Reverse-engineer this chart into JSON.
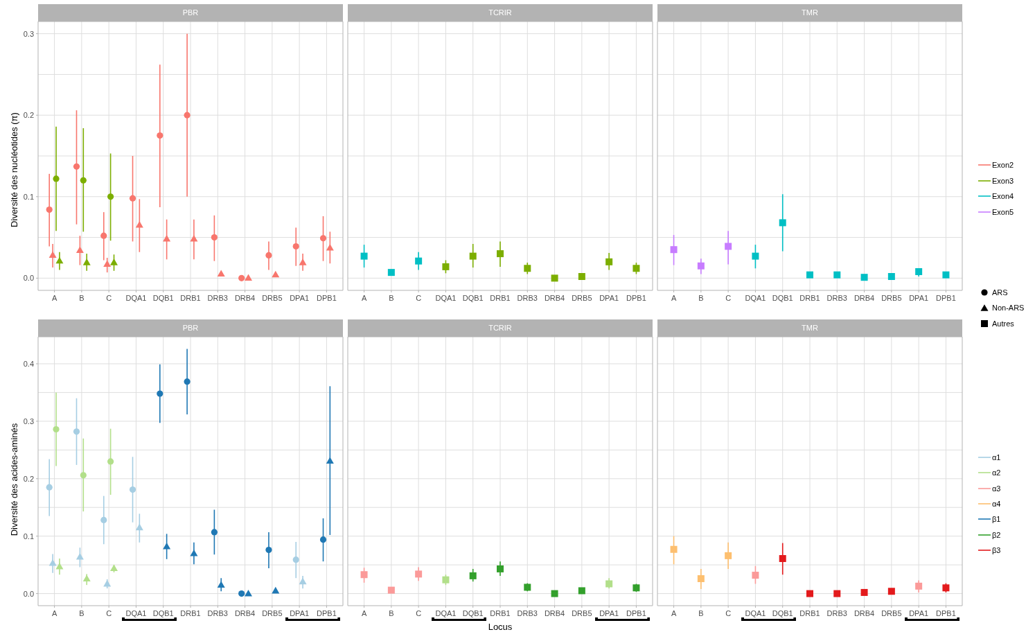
{
  "chart_data": [
    {
      "type": "scatter",
      "title": "PBR",
      "ylabel": "Diversité des nucléotides (π)",
      "categories": [
        "A",
        "B",
        "C",
        "DQA1",
        "DQB1",
        "DRB1",
        "DRB3",
        "DRB4",
        "DRB5",
        "DPA1",
        "DPB1"
      ],
      "ylim": [
        -0.015,
        0.315
      ],
      "yticks": [
        {
          "value": 0,
          "label": "0.0"
        },
        {
          "value": 0.05,
          "label": null
        },
        0.1,
        {
          "value": 0.15,
          "label": null
        },
        0.2,
        {
          "value": 0.25,
          "label": null
        },
        0.3
      ],
      "grid": true,
      "series": [
        {
          "color": "#f8766d",
          "marker": "circle",
          "values": [
            0.084,
            0.137,
            0.052,
            0.098,
            0.175,
            0.2,
            0.05,
            0,
            0.028,
            0.039,
            0.049
          ],
          "errors": [
            [
              0.039,
              0.128
            ],
            [
              0.066,
              0.206
            ],
            [
              0.022,
              0.081
            ],
            [
              0.045,
              0.15
            ],
            [
              0.087,
              0.262
            ],
            [
              0.1,
              0.3
            ],
            [
              0.021,
              0.077
            ],
            null,
            [
              0.01,
              0.045
            ],
            [
              0.015,
              0.062
            ],
            [
              0.021,
              0.076
            ]
          ]
        },
        {
          "color": "#f8766d",
          "marker": "triangle",
          "values": [
            0.029,
            0.035,
            0.018,
            0.066,
            0.049,
            0.049,
            0.006,
            0.001,
            0.005,
            0.02,
            0.038
          ],
          "errors": [
            [
              0.013,
              0.042
            ],
            [
              0.016,
              0.052
            ],
            [
              0.007,
              0.025
            ],
            [
              0.032,
              0.097
            ],
            [
              0.023,
              0.072
            ],
            [
              0.023,
              0.072
            ],
            null,
            null,
            null,
            [
              0.009,
              0.03
            ],
            [
              0.018,
              0.057
            ]
          ]
        },
        {
          "color": "#7cae00",
          "marker": "circle",
          "values": [
            0.122,
            0.12,
            0.1,
            null,
            null,
            null,
            null,
            null,
            null,
            null,
            null
          ],
          "errors": [
            [
              0.058,
              0.186
            ],
            [
              0.057,
              0.184
            ],
            [
              0.046,
              0.153
            ],
            null,
            null,
            null,
            null,
            null,
            null,
            null,
            null
          ]
        },
        {
          "color": "#7cae00",
          "marker": "triangle",
          "values": [
            0.022,
            0.02,
            0.02,
            null,
            null,
            null,
            null,
            null,
            null,
            null,
            null
          ],
          "errors": [
            [
              0.01,
              0.032
            ],
            [
              0.009,
              0.03
            ],
            [
              0.009,
              0.029
            ],
            null,
            null,
            null,
            null,
            null,
            null,
            null,
            null
          ]
        }
      ]
    },
    {
      "type": "scatter",
      "title": "TCRIR",
      "categories": [
        "A",
        "B",
        "C",
        "DQA1",
        "DQB1",
        "DRB1",
        "DRB3",
        "DRB4",
        "DRB5",
        "DPA1",
        "DPB1"
      ],
      "ylim": [
        -0.015,
        0.315
      ],
      "yticks": [
        0,
        0.05,
        0.1,
        0.15,
        0.2,
        0.25,
        0.3
      ],
      "grid": true,
      "tick_labels": "x",
      "series": [
        {
          "color": "#00bfc4",
          "marker": "square",
          "values": [
            0.027,
            0.007,
            0.021,
            null,
            null,
            null,
            null,
            null,
            null,
            null,
            null
          ],
          "errors": [
            [
              0.013,
              0.041
            ],
            null,
            [
              0.01,
              0.032
            ],
            null,
            null,
            null,
            null,
            null,
            null,
            null,
            null
          ]
        },
        {
          "color": "#7cae00",
          "marker": "square",
          "values": [
            null,
            null,
            null,
            0.014,
            0.027,
            0.03,
            0.012,
            0,
            0.002,
            0.02,
            0.012
          ],
          "errors": [
            null,
            null,
            null,
            [
              0.006,
              0.022
            ],
            [
              0.013,
              0.042
            ],
            [
              0.014,
              0.045
            ],
            [
              0.005,
              0.019
            ],
            null,
            null,
            [
              0.01,
              0.031
            ],
            [
              0.005,
              0.019
            ]
          ]
        }
      ]
    },
    {
      "type": "scatter",
      "title": "TMR",
      "categories": [
        "A",
        "B",
        "C",
        "DQA1",
        "DQB1",
        "DRB1",
        "DRB3",
        "DRB4",
        "DRB5",
        "DPA1",
        "DPB1"
      ],
      "ylim": [
        -0.015,
        0.315
      ],
      "yticks": [
        0,
        0.05,
        0.1,
        0.15,
        0.2,
        0.25,
        0.3
      ],
      "grid": true,
      "tick_labels": "x",
      "legend": "right",
      "series": [
        {
          "color": "#c77cff",
          "marker": "square",
          "values": [
            0.035,
            0.015,
            0.039,
            null,
            null,
            null,
            null,
            null,
            null,
            null,
            null
          ],
          "errors": [
            [
              0.016,
              0.053
            ],
            [
              0.005,
              0.024
            ],
            [
              0.017,
              0.058
            ],
            null,
            null,
            null,
            null,
            null,
            null,
            null,
            null
          ]
        },
        {
          "color": "#00bfc4",
          "marker": "square",
          "values": [
            null,
            null,
            null,
            0.027,
            0.068,
            0.004,
            0.004,
            0.001,
            0.002,
            0.008,
            0.004
          ],
          "errors": [
            null,
            null,
            null,
            [
              0.012,
              0.041
            ],
            [
              0.033,
              0.103
            ],
            null,
            null,
            null,
            null,
            [
              0.002,
              0.012
            ],
            null
          ]
        },
        {
          "name": "Exon2",
          "color": "#f8766d",
          "values": [
            null,
            null,
            null,
            null,
            null,
            null,
            null,
            null,
            null,
            null,
            null
          ]
        },
        {
          "name": "Exon3",
          "color": "#7cae00",
          "values": [
            null,
            null,
            null,
            null,
            null,
            null,
            null,
            null,
            null,
            null,
            null
          ]
        },
        {
          "name": "Exon4",
          "color": "#00bfc4",
          "values": [
            null,
            null,
            null,
            null,
            null,
            null,
            null,
            null,
            null,
            null,
            null
          ]
        },
        {
          "name": "Exon5",
          "color": "#c77cff",
          "values": [
            null,
            null,
            null,
            null,
            null,
            null,
            null,
            null,
            null,
            null,
            null
          ]
        },
        {
          "name": "ARS",
          "color": "#000000",
          "marker": "circle",
          "values": [
            null,
            null,
            null,
            null,
            null,
            null,
            null,
            null,
            null,
            null,
            null
          ]
        },
        {
          "name": "Non-ARS",
          "color": "#000000",
          "marker": "triangle",
          "values": [
            null,
            null,
            null,
            null,
            null,
            null,
            null,
            null,
            null,
            null,
            null
          ]
        },
        {
          "name": "Autres",
          "color": "#000000",
          "marker": "square",
          "values": [
            null,
            null,
            null,
            null,
            null,
            null,
            null,
            null,
            null,
            null,
            null
          ]
        }
      ]
    },
    {
      "type": "scatter",
      "title": "PBR",
      "ylabel": "Diversité des acides-aminés",
      "categories": [
        "A",
        "B",
        "C",
        "DQA1",
        "DQB1",
        "DRB1",
        "DRB3",
        "DRB4",
        "DRB5",
        "DPA1",
        "DPB1"
      ],
      "ylim": [
        -0.021,
        0.447
      ],
      "yticks": [
        {
          "value": 0,
          "label": "0.0"
        },
        {
          "value": 0.05,
          "label": null
        },
        0.1,
        {
          "value": 0.15,
          "label": null
        },
        0.2,
        {
          "value": 0.25,
          "label": null
        },
        0.3,
        {
          "value": 0.35,
          "label": null
        },
        0.4
      ],
      "grid": true,
      "series": [
        {
          "color": "#a6cee3",
          "marker": "circle",
          "values": [
            0.185,
            0.282,
            0.128,
            0.181,
            null,
            null,
            null,
            null,
            null,
            0.059,
            null
          ],
          "errors": [
            [
              0.135,
              0.234
            ],
            [
              0.224,
              0.34
            ],
            [
              0.086,
              0.17
            ],
            [
              0.124,
              0.238
            ],
            null,
            null,
            null,
            null,
            null,
            [
              0.027,
              0.09
            ],
            null
          ]
        },
        {
          "color": "#a6cee3",
          "marker": "triangle",
          "values": [
            0.054,
            0.065,
            0.018,
            0.116,
            null,
            null,
            null,
            null,
            null,
            0.022,
            null
          ],
          "errors": [
            [
              0.036,
              0.069
            ],
            [
              0.046,
              0.08
            ],
            [
              0.009,
              0.025
            ],
            [
              0.089,
              0.139
            ],
            null,
            null,
            null,
            null,
            null,
            [
              0.009,
              0.031
            ],
            null
          ]
        },
        {
          "color": "#b2df8a",
          "marker": "circle",
          "values": [
            0.286,
            0.206,
            0.23,
            null,
            null,
            null,
            null,
            null,
            null,
            null,
            null
          ],
          "errors": [
            [
              0.222,
              0.35
            ],
            [
              0.143,
              0.27
            ],
            [
              0.172,
              0.287
            ],
            null,
            null,
            null,
            null,
            null,
            null,
            null,
            null
          ]
        },
        {
          "color": "#b2df8a",
          "marker": "triangle",
          "values": [
            0.048,
            0.027,
            0.045,
            null,
            null,
            null,
            null,
            null,
            null,
            null,
            null
          ],
          "errors": [
            [
              0.033,
              0.061
            ],
            [
              0.015,
              0.034
            ],
            [
              0.037,
              0.05
            ],
            null,
            null,
            null,
            null,
            null,
            null,
            null,
            null
          ]
        },
        {
          "color": "#1f78b4",
          "marker": "circle",
          "values": [
            null,
            null,
            null,
            null,
            0.348,
            0.369,
            0.107,
            0,
            0.076,
            null,
            0.094
          ],
          "errors": [
            null,
            null,
            null,
            null,
            [
              0.297,
              0.399
            ],
            [
              0.312,
              0.426
            ],
            [
              0.068,
              0.146
            ],
            null,
            [
              0.044,
              0.107
            ],
            null,
            [
              0.056,
              0.131
            ]
          ]
        },
        {
          "color": "#1f78b4",
          "marker": "triangle",
          "values": [
            null,
            null,
            null,
            null,
            0.083,
            0.071,
            0.016,
            0.001,
            0.006,
            null,
            0.232
          ],
          "errors": [
            null,
            null,
            null,
            null,
            [
              0.06,
              0.104
            ],
            [
              0.051,
              0.089
            ],
            [
              0.004,
              0.027
            ],
            null,
            null,
            null,
            [
              0.102,
              0.361
            ]
          ]
        }
      ]
    },
    {
      "type": "scatter",
      "title": "TCRIR",
      "xlabel": "Locus",
      "categories": [
        "A",
        "B",
        "C",
        "DQA1",
        "DQB1",
        "DRB1",
        "DRB3",
        "DRB4",
        "DRB5",
        "DPA1",
        "DPB1"
      ],
      "ylim": [
        -0.021,
        0.447
      ],
      "yticks": [
        0,
        0.05,
        0.1,
        0.15,
        0.2,
        0.25,
        0.3,
        0.35,
        0.4
      ],
      "grid": true,
      "tick_labels": "x",
      "series": [
        {
          "color": "#fb9a99",
          "marker": "square",
          "values": [
            0.033,
            0.006,
            0.034,
            null,
            null,
            null,
            null,
            null,
            null,
            null,
            null
          ],
          "errors": [
            [
              0.019,
              0.045
            ],
            null,
            [
              0.022,
              0.046
            ],
            null,
            null,
            null,
            null,
            null,
            null,
            null,
            null
          ]
        },
        {
          "color": "#b2df8a",
          "marker": "square",
          "values": [
            null,
            null,
            null,
            0.024,
            null,
            null,
            null,
            null,
            null,
            0.017,
            null
          ],
          "errors": [
            null,
            null,
            null,
            [
              0.015,
              0.033
            ],
            null,
            null,
            null,
            null,
            null,
            [
              0.009,
              0.027
            ],
            null
          ]
        },
        {
          "color": "#33a02c",
          "marker": "square",
          "values": [
            null,
            null,
            null,
            null,
            0.031,
            0.043,
            0.011,
            0,
            0.005,
            null,
            0.01
          ],
          "errors": [
            null,
            null,
            null,
            null,
            [
              0.021,
              0.043
            ],
            [
              0.031,
              0.056
            ],
            [
              0.004,
              0.018
            ],
            null,
            null,
            null,
            [
              0.003,
              0.017
            ]
          ]
        }
      ]
    },
    {
      "type": "scatter",
      "title": "TMR",
      "categories": [
        "A",
        "B",
        "C",
        "DQA1",
        "DQB1",
        "DRB1",
        "DRB3",
        "DRB4",
        "DRB5",
        "DPA1",
        "DPB1"
      ],
      "ylim": [
        -0.021,
        0.447
      ],
      "yticks": [
        0,
        0.05,
        0.1,
        0.15,
        0.2,
        0.25,
        0.3,
        0.35,
        0.4
      ],
      "grid": true,
      "tick_labels": "x",
      "legend": "right",
      "series": [
        {
          "color": "#fdbf6f",
          "marker": "square",
          "values": [
            0.077,
            0.026,
            0.066,
            null,
            null,
            null,
            null,
            null,
            null,
            null,
            null
          ],
          "errors": [
            [
              0.051,
              0.1
            ],
            [
              0.008,
              0.043
            ],
            [
              0.043,
              0.089
            ],
            null,
            null,
            null,
            null,
            null,
            null,
            null,
            null
          ]
        },
        {
          "color": "#fb9a99",
          "marker": "square",
          "values": [
            null,
            null,
            null,
            0.032,
            null,
            null,
            null,
            null,
            null,
            0.013,
            null
          ],
          "errors": [
            null,
            null,
            null,
            [
              0.017,
              0.048
            ],
            null,
            null,
            null,
            null,
            null,
            [
              0.002,
              0.023
            ],
            null
          ]
        },
        {
          "color": "#e31a1c",
          "marker": "square",
          "values": [
            null,
            null,
            null,
            null,
            0.061,
            0,
            0,
            0.002,
            0.004,
            null,
            0.01
          ],
          "errors": [
            null,
            null,
            null,
            null,
            [
              0.033,
              0.088
            ],
            null,
            null,
            null,
            null,
            null,
            [
              0.002,
              0.018
            ]
          ]
        },
        {
          "name": "α1",
          "color": "#a6cee3",
          "values": [
            null,
            null,
            null,
            null,
            null,
            null,
            null,
            null,
            null,
            null,
            null
          ]
        },
        {
          "name": "α2",
          "color": "#b2df8a",
          "values": [
            null,
            null,
            null,
            null,
            null,
            null,
            null,
            null,
            null,
            null,
            null
          ]
        },
        {
          "name": "α3",
          "color": "#fb9a99",
          "values": [
            null,
            null,
            null,
            null,
            null,
            null,
            null,
            null,
            null,
            null,
            null
          ]
        },
        {
          "name": "α4",
          "color": "#fdbf6f",
          "values": [
            null,
            null,
            null,
            null,
            null,
            null,
            null,
            null,
            null,
            null,
            null
          ]
        },
        {
          "name": "β1",
          "color": "#1f78b4",
          "values": [
            null,
            null,
            null,
            null,
            null,
            null,
            null,
            null,
            null,
            null,
            null
          ]
        },
        {
          "name": "β2",
          "color": "#33a02c",
          "values": [
            null,
            null,
            null,
            null,
            null,
            null,
            null,
            null,
            null,
            null,
            null
          ]
        },
        {
          "name": "β3",
          "color": "#e31a1c",
          "values": [
            null,
            null,
            null,
            null,
            null,
            null,
            null,
            null,
            null,
            null,
            null
          ]
        }
      ]
    }
  ]
}
